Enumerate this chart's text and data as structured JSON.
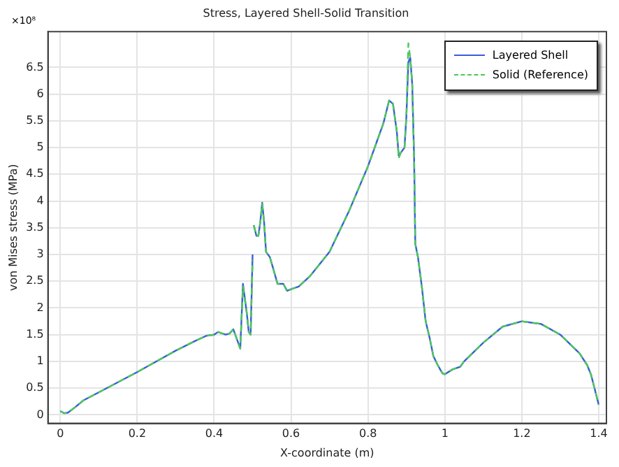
{
  "chart_data": {
    "type": "line",
    "title": "Stress, Layered Shell-Solid Transition",
    "xlabel": "X-coordinate (m)",
    "ylabel": "von Mises stress (MPa)",
    "annotations": [
      "×10⁸"
    ],
    "x": [
      0,
      0.01,
      0.02,
      0.04,
      0.06,
      0.1,
      0.2,
      0.3,
      0.35,
      0.38,
      0.4,
      0.41,
      0.43,
      0.44,
      0.45,
      0.46,
      0.468,
      0.475,
      0.485,
      0.49,
      0.495,
      0.5,
      0.501,
      0.503,
      0.51,
      0.515,
      0.52,
      0.525,
      0.53,
      0.535,
      0.545,
      0.555,
      0.565,
      0.58,
      0.59,
      0.6,
      0.62,
      0.65,
      0.7,
      0.75,
      0.8,
      0.82,
      0.84,
      0.855,
      0.865,
      0.875,
      0.88,
      0.885,
      0.895,
      0.9,
      0.905,
      0.91,
      0.915,
      0.92,
      0.923,
      0.93,
      0.94,
      0.95,
      0.96,
      0.97,
      0.98,
      0.99,
      0.995,
      1.0,
      1.02,
      1.04,
      1.05,
      1.1,
      1.15,
      1.2,
      1.25,
      1.3,
      1.35,
      1.37,
      1.38,
      1.4
    ],
    "series": [
      {
        "name": "Layered Shell",
        "color": "#3b5bdb",
        "line_style": "solid",
        "values": [
          0.07,
          0.03,
          0.04,
          0.15,
          0.27,
          0.42,
          0.8,
          1.2,
          1.38,
          1.48,
          1.5,
          1.55,
          1.5,
          1.52,
          1.6,
          1.4,
          1.24,
          2.45,
          1.9,
          1.55,
          1.5,
          3.0,
          null,
          3.55,
          3.35,
          3.35,
          3.6,
          3.97,
          3.6,
          3.05,
          2.95,
          2.7,
          2.45,
          2.45,
          2.32,
          2.35,
          2.4,
          2.6,
          3.05,
          3.8,
          4.65,
          5.05,
          5.45,
          5.88,
          5.82,
          5.3,
          4.85,
          4.9,
          5.0,
          5.6,
          6.6,
          6.68,
          6.2,
          4.8,
          3.2,
          2.95,
          2.4,
          1.75,
          1.45,
          1.1,
          0.95,
          0.82,
          0.77,
          0.76,
          0.85,
          0.9,
          1.0,
          1.35,
          1.65,
          1.75,
          1.7,
          1.5,
          1.15,
          0.93,
          0.75,
          0.19
        ]
      },
      {
        "name": "Solid (Reference)",
        "color": "#4cc85a",
        "line_style": "dashed",
        "values": [
          0.07,
          0.03,
          0.04,
          0.15,
          0.27,
          0.42,
          0.8,
          1.2,
          1.38,
          1.48,
          1.5,
          1.55,
          1.5,
          1.52,
          1.6,
          1.4,
          1.24,
          2.4,
          1.9,
          1.55,
          1.5,
          2.9,
          null,
          3.55,
          3.35,
          3.35,
          3.6,
          3.95,
          3.6,
          3.05,
          2.95,
          2.7,
          2.45,
          2.45,
          2.3,
          2.35,
          2.4,
          2.6,
          3.05,
          3.8,
          4.65,
          5.05,
          5.45,
          5.88,
          5.82,
          5.3,
          4.8,
          4.9,
          5.0,
          5.6,
          6.95,
          6.68,
          6.2,
          4.8,
          3.2,
          2.95,
          2.4,
          1.75,
          1.45,
          1.1,
          0.95,
          0.82,
          0.77,
          0.76,
          0.85,
          0.9,
          1.0,
          1.35,
          1.65,
          1.75,
          1.7,
          1.5,
          1.15,
          0.93,
          0.75,
          0.19
        ]
      }
    ],
    "xlim": [
      -0.032,
      1.42
    ],
    "xticks": [
      0,
      0.2,
      0.4,
      0.6,
      0.8,
      1,
      1.2,
      1.4
    ],
    "ylim": [
      -0.16,
      7.17
    ],
    "yticks": [
      0,
      0.5,
      1,
      1.5,
      2,
      2.5,
      3,
      3.5,
      4,
      4.5,
      5,
      5.5,
      6,
      6.5
    ],
    "grid": true,
    "legend": "top right",
    "marker": "none"
  }
}
